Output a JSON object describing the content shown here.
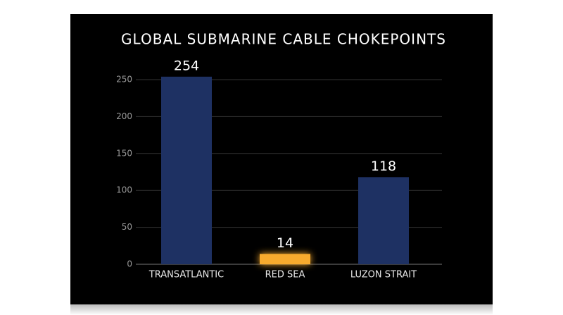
{
  "chart_data": {
    "type": "bar",
    "title": "GLOBAL SUBMARINE CABLE CHOKEPOINTS",
    "categories": [
      "TRANSATLANTIC",
      "RED SEA",
      "LUZON STRAIT"
    ],
    "values": [
      254,
      14,
      118
    ],
    "colors": [
      "#1e3163",
      "#f7aa2e",
      "#1e3163"
    ],
    "ylim": [
      0,
      250
    ],
    "yticks": [
      0,
      50,
      100,
      150,
      200,
      250
    ],
    "grid": true
  }
}
